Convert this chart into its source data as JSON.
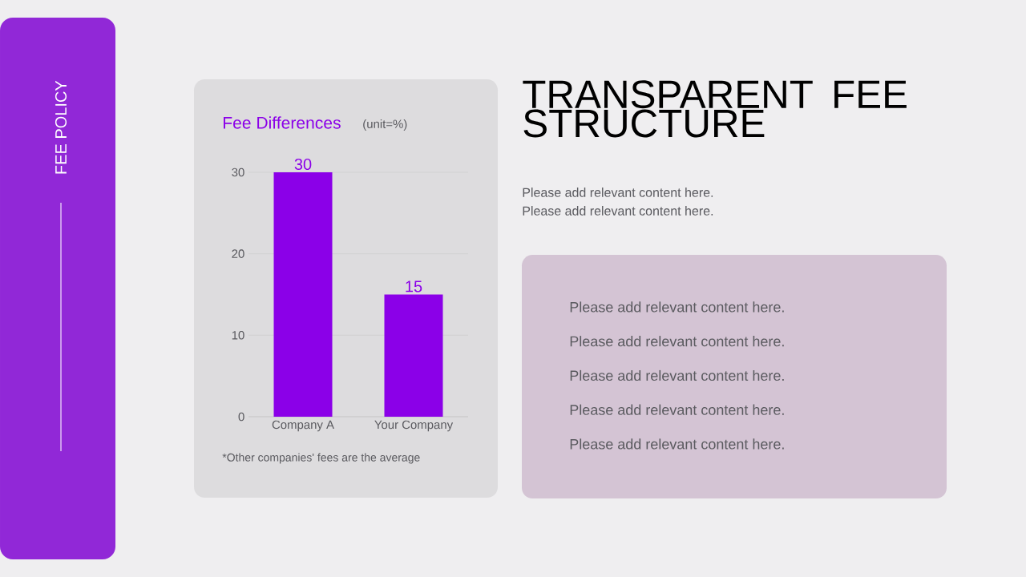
{
  "chart_data": {
    "type": "bar",
    "title": "Fee Differences",
    "subtitle": "(unit=%)",
    "categories": [
      "Company A",
      "Your Company"
    ],
    "values": [
      30,
      15
    ],
    "color": "#8b00e8",
    "ylim": [
      0,
      30
    ],
    "yticks": [
      0,
      10,
      20,
      30
    ],
    "grid": "y",
    "data_labels": true,
    "annotations": [
      "*Other companies' fees are the average",
      "FEE POLICY",
      "TRANSPARENT FEE STRUCTURE",
      "Please add relevant content here.",
      "Please add relevant content here.",
      "Please add relevant content here.",
      "Please add relevant content here.",
      "Please add relevant content here.",
      "Please add relevant content here.",
      "Please add relevant content here."
    ]
  }
}
